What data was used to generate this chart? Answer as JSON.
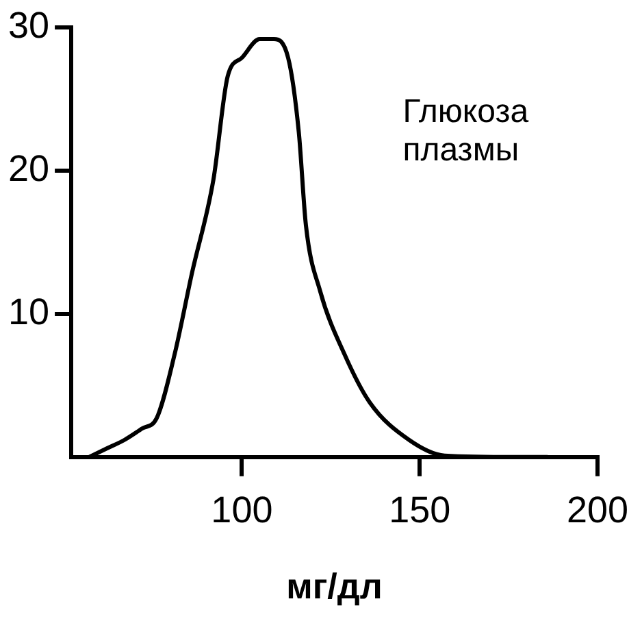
{
  "chart_data": {
    "type": "line",
    "xlabel": "мг/дл",
    "annotations": [
      "Глюкоза плазмы"
    ],
    "series": [
      {
        "color": "#000000",
        "x": [
          57,
          62,
          67,
          72,
          76,
          81,
          86,
          92,
          96,
          100,
          105,
          109,
          113,
          116,
          118,
          122,
          129,
          136,
          147,
          157,
          177,
          186
        ],
        "values": [
          0,
          0.6,
          1.2,
          2,
          2.7,
          7.1,
          12.9,
          19.4,
          26.6,
          27.9,
          29.2,
          29.2,
          27.9,
          22.7,
          16.2,
          11.6,
          7.1,
          3.8,
          1.2,
          0.1,
          0,
          0
        ]
      }
    ],
    "xlim": [
      52,
      200
    ],
    "xticks": [
      100,
      150,
      200
    ],
    "ylim": [
      0,
      30
    ],
    "yticks": [
      10,
      20,
      30
    ],
    "marker": "none",
    "line_style": "solid",
    "legend": false
  }
}
